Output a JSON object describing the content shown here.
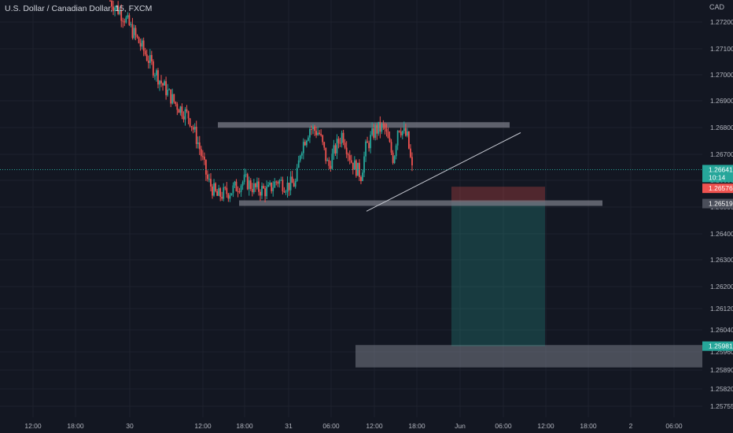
{
  "header": {
    "title": "U.S. Dollar / Canadian Dollar, 15, FXCM",
    "currency": "CAD"
  },
  "colors": {
    "background": "#131722",
    "grid": "#1e222d",
    "up_candle": "#26a69a",
    "down_candle": "#ef5350",
    "text": "#b2b5be",
    "zone": "#787b86",
    "profit_zone": "#0e3b3a",
    "loss_zone": "#4a1f27",
    "trendline": "#c5c8d1"
  },
  "chart_data": {
    "type": "candlestick",
    "symbol": "U.S. Dollar / Canadian Dollar",
    "interval": "15",
    "source": "FXCM",
    "ylim": [
      1.2571,
      1.2738
    ],
    "x_tick_labels": [
      "12:00",
      "18:00",
      "30",
      "12:00",
      "18:00",
      "31",
      "06:00",
      "12:00",
      "18:00",
      "Jun",
      "06:00",
      "12:00",
      "18:00",
      "2",
      "06:00"
    ],
    "y_tick_labels": [
      "1.27200",
      "1.27100",
      "1.27000",
      "1.26900",
      "1.26800",
      "1.26700",
      "1.26600",
      "1.26500",
      "1.26400",
      "1.26300",
      "1.26200",
      "1.26120",
      "1.26040",
      "1.25960",
      "1.25890",
      "1.25820",
      "1.25755"
    ],
    "y_tick_values": [
      1.272,
      1.271,
      1.27,
      1.269,
      1.268,
      1.267,
      1.266,
      1.265,
      1.264,
      1.263,
      1.262,
      1.2612,
      1.2604,
      1.2596,
      1.2589,
      1.2582,
      1.25755
    ],
    "price_labels": [
      {
        "value": "1.26641",
        "countdown": "10:14",
        "role": "last-price"
      },
      {
        "value": "1.26576",
        "role": "stop-loss"
      },
      {
        "value": "1.26519",
        "role": "entry"
      },
      {
        "value": "1.25981",
        "role": "target"
      }
    ],
    "series_path": {
      "description": "approximate close-price path, x in fractional bar index over [0,100]",
      "points": [
        [
          0,
          1.2728
        ],
        [
          3,
          1.2722
        ],
        [
          7,
          1.271
        ],
        [
          11,
          1.2697
        ],
        [
          14,
          1.2689
        ],
        [
          17,
          1.2684
        ],
        [
          19,
          1.2674
        ],
        [
          21,
          1.266
        ],
        [
          23,
          1.2654
        ],
        [
          26,
          1.2656
        ],
        [
          29,
          1.266
        ],
        [
          31,
          1.2657
        ],
        [
          34,
          1.2656
        ],
        [
          36,
          1.266
        ],
        [
          38,
          1.2658
        ],
        [
          40,
          1.2659
        ],
        [
          41,
          1.2672
        ],
        [
          43,
          1.268
        ],
        [
          45,
          1.2678
        ],
        [
          47,
          1.2665
        ],
        [
          48,
          1.267
        ],
        [
          50,
          1.2678
        ],
        [
          52,
          1.2667
        ],
        [
          54,
          1.2662
        ],
        [
          55,
          1.2672
        ],
        [
          57,
          1.2679
        ],
        [
          59,
          1.268
        ],
        [
          61,
          1.2668
        ],
        [
          62,
          1.2681
        ],
        [
          64,
          1.2676
        ],
        [
          65,
          1.2664
        ]
      ]
    },
    "annotations": [
      {
        "type": "resistance-zone",
        "y_low": 1.268,
        "y_high": 1.2682
      },
      {
        "type": "support-zone",
        "y_low": 1.2651,
        "y_high": 1.26525
      },
      {
        "type": "target-zone",
        "y_low": 1.259,
        "y_high": 1.25985
      },
      {
        "type": "trendline",
        "y_start": 1.26555,
        "y_end": 1.26775
      },
      {
        "type": "short-position",
        "entry": 1.26519,
        "stop": 1.26576,
        "target": 1.25981
      }
    ]
  }
}
